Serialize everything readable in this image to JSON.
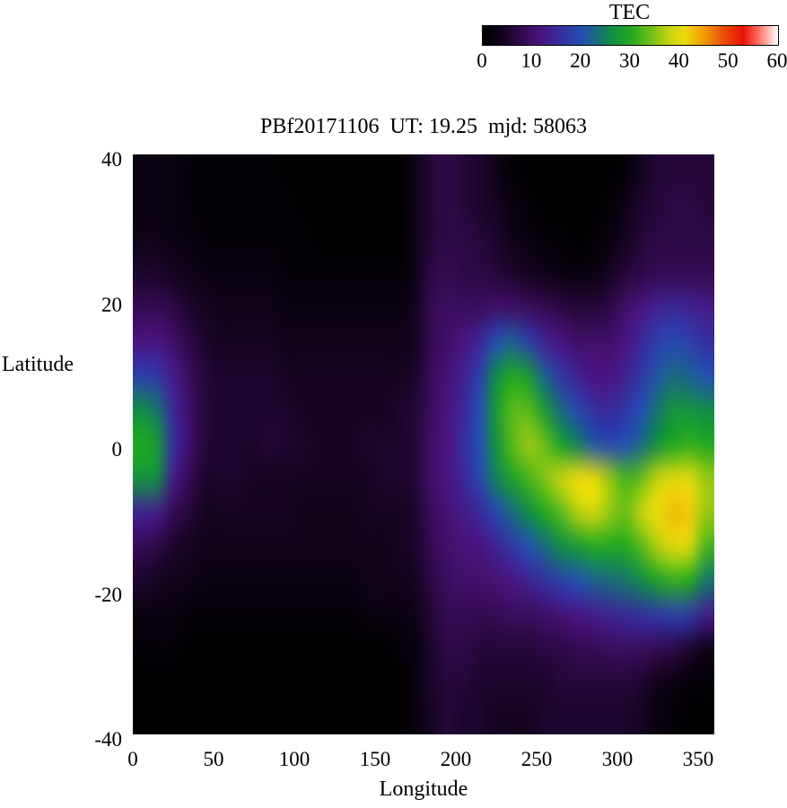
{
  "chart_data": {
    "type": "heatmap",
    "title": "PBf20171106  UT: 19.25  mjd: 58063",
    "xlabel": "Longitude",
    "ylabel": "Latitude",
    "colorbar_label": "TEC",
    "xlim": [
      0,
      360
    ],
    "ylim": [
      -40,
      40
    ],
    "x_ticks": [
      0,
      50,
      100,
      150,
      200,
      250,
      300,
      350
    ],
    "y_ticks": [
      40,
      20,
      0,
      -20,
      -40
    ],
    "colorbar_range": [
      0,
      60
    ],
    "colorbar_ticks": [
      0,
      10,
      20,
      30,
      40,
      50,
      60
    ],
    "lon_grid": [
      0,
      10,
      20,
      30,
      40,
      50,
      60,
      70,
      80,
      90,
      100,
      110,
      120,
      130,
      140,
      150,
      160,
      170,
      180,
      190,
      200,
      210,
      220,
      230,
      240,
      250,
      260,
      270,
      280,
      290,
      300,
      310,
      320,
      330,
      340,
      350
    ],
    "lat_grid": [
      40,
      35,
      30,
      25,
      20,
      15,
      10,
      5,
      0,
      -5,
      -10,
      -15,
      -20,
      -25,
      -30,
      -35,
      -40
    ],
    "tec_values": [
      [
        2,
        2,
        2,
        1,
        1,
        1,
        1,
        1,
        1,
        0,
        0,
        0,
        0,
        0,
        0,
        0,
        0,
        3,
        6,
        7,
        6,
        5,
        3,
        1,
        0,
        0,
        0,
        0,
        0,
        0,
        1,
        4,
        6,
        6,
        6,
        6
      ],
      [
        2,
        2,
        2,
        1,
        1,
        1,
        1,
        1,
        1,
        1,
        0,
        0,
        0,
        0,
        0,
        0,
        0,
        3,
        6,
        7,
        6,
        5,
        4,
        2,
        1,
        0,
        0,
        0,
        0,
        1,
        3,
        5,
        6,
        7,
        7,
        6
      ],
      [
        3,
        3,
        2,
        2,
        1,
        1,
        1,
        1,
        1,
        1,
        1,
        0,
        0,
        0,
        0,
        0,
        0,
        3,
        6,
        7,
        7,
        6,
        5,
        3,
        2,
        1,
        1,
        0,
        1,
        2,
        4,
        6,
        7,
        7,
        7,
        7
      ],
      [
        5,
        5,
        4,
        3,
        2,
        2,
        2,
        2,
        2,
        1,
        1,
        1,
        1,
        1,
        1,
        1,
        1,
        3,
        7,
        8,
        7,
        7,
        6,
        5,
        4,
        3,
        2,
        2,
        2,
        4,
        6,
        7,
        8,
        8,
        8,
        8
      ],
      [
        8,
        8,
        7,
        5,
        4,
        3,
        3,
        3,
        3,
        2,
        2,
        2,
        2,
        2,
        2,
        2,
        2,
        4,
        8,
        9,
        9,
        9,
        10,
        10,
        9,
        8,
        7,
        6,
        6,
        7,
        10,
        12,
        14,
        15,
        14,
        13
      ],
      [
        12,
        12,
        10,
        7,
        5,
        4,
        4,
        4,
        4,
        3,
        3,
        3,
        3,
        3,
        3,
        3,
        3,
        4,
        8,
        10,
        12,
        15,
        20,
        22,
        18,
        14,
        12,
        10,
        10,
        10,
        12,
        15,
        18,
        19,
        18,
        16
      ],
      [
        18,
        17,
        13,
        9,
        6,
        5,
        5,
        5,
        5,
        4,
        4,
        4,
        4,
        4,
        4,
        4,
        4,
        5,
        9,
        11,
        14,
        18,
        26,
        30,
        28,
        22,
        17,
        14,
        12,
        12,
        14,
        17,
        21,
        23,
        22,
        20
      ],
      [
        26,
        24,
        15,
        10,
        6,
        5,
        5,
        5,
        5,
        5,
        4,
        4,
        4,
        4,
        4,
        4,
        5,
        6,
        9,
        12,
        15,
        20,
        28,
        33,
        33,
        28,
        23,
        19,
        16,
        15,
        17,
        20,
        24,
        27,
        27,
        26
      ],
      [
        30,
        28,
        16,
        10,
        6,
        5,
        5,
        5,
        6,
        5,
        5,
        4,
        4,
        4,
        5,
        5,
        5,
        6,
        10,
        12,
        16,
        20,
        27,
        33,
        36,
        34,
        29,
        25,
        21,
        19,
        20,
        23,
        27,
        30,
        31,
        30
      ],
      [
        27,
        26,
        13,
        8,
        5,
        5,
        5,
        4,
        4,
        4,
        4,
        4,
        4,
        4,
        4,
        5,
        5,
        6,
        10,
        12,
        15,
        19,
        25,
        29,
        32,
        35,
        38,
        41,
        41,
        36,
        32,
        34,
        38,
        40,
        40,
        36
      ],
      [
        14,
        13,
        8,
        6,
        4,
        4,
        4,
        4,
        4,
        4,
        3,
        3,
        3,
        3,
        4,
        4,
        4,
        5,
        9,
        11,
        13,
        15,
        19,
        23,
        26,
        30,
        33,
        37,
        39,
        36,
        34,
        38,
        41,
        43,
        42,
        36
      ],
      [
        8,
        7,
        5,
        4,
        3,
        3,
        3,
        3,
        3,
        3,
        3,
        3,
        3,
        3,
        3,
        3,
        4,
        5,
        8,
        10,
        11,
        12,
        14,
        17,
        20,
        23,
        26,
        28,
        30,
        30,
        30,
        33,
        37,
        40,
        39,
        32
      ],
      [
        5,
        4,
        3,
        3,
        2,
        2,
        2,
        2,
        2,
        2,
        2,
        2,
        2,
        2,
        3,
        3,
        3,
        4,
        7,
        9,
        10,
        10,
        11,
        12,
        14,
        16,
        18,
        20,
        22,
        23,
        24,
        26,
        29,
        31,
        30,
        24
      ],
      [
        2,
        2,
        2,
        1,
        1,
        1,
        1,
        1,
        1,
        1,
        1,
        1,
        1,
        1,
        2,
        2,
        2,
        3,
        6,
        8,
        8,
        8,
        8,
        9,
        9,
        10,
        11,
        12,
        13,
        14,
        15,
        16,
        17,
        18,
        17,
        13
      ],
      [
        1,
        1,
        1,
        0,
        0,
        0,
        0,
        0,
        0,
        0,
        0,
        0,
        0,
        0,
        0,
        0,
        1,
        2,
        5,
        7,
        7,
        6,
        6,
        6,
        6,
        7,
        7,
        8,
        8,
        9,
        9,
        9,
        8,
        7,
        5,
        3
      ],
      [
        0,
        0,
        0,
        0,
        0,
        0,
        0,
        0,
        0,
        0,
        0,
        0,
        0,
        0,
        0,
        0,
        0,
        2,
        5,
        6,
        6,
        5,
        5,
        5,
        5,
        5,
        6,
        6,
        6,
        6,
        6,
        5,
        3,
        2,
        1,
        1
      ],
      [
        0,
        0,
        0,
        0,
        0,
        0,
        0,
        0,
        0,
        0,
        0,
        0,
        0,
        0,
        0,
        0,
        0,
        2,
        4,
        6,
        5,
        5,
        4,
        4,
        4,
        5,
        5,
        5,
        5,
        5,
        5,
        4,
        2,
        1,
        0,
        0
      ]
    ],
    "color_stops": [
      {
        "v": 0,
        "c": "#000000"
      },
      {
        "v": 4,
        "c": "#140420"
      },
      {
        "v": 8,
        "c": "#350b52"
      },
      {
        "v": 12,
        "c": "#4a1582"
      },
      {
        "v": 16,
        "c": "#35309f"
      },
      {
        "v": 20,
        "c": "#2450b4"
      },
      {
        "v": 23,
        "c": "#1a6a80"
      },
      {
        "v": 26,
        "c": "#128c48"
      },
      {
        "v": 30,
        "c": "#22a822"
      },
      {
        "v": 34,
        "c": "#6cbe18"
      },
      {
        "v": 38,
        "c": "#c6d410"
      },
      {
        "v": 41,
        "c": "#ecdc0a"
      },
      {
        "v": 45,
        "c": "#f29c06"
      },
      {
        "v": 49,
        "c": "#ea4e06"
      },
      {
        "v": 53,
        "c": "#e81206"
      },
      {
        "v": 56,
        "c": "#ff6a5e"
      },
      {
        "v": 58,
        "c": "#ffb4ac"
      },
      {
        "v": 60,
        "c": "#ffffff"
      }
    ],
    "legend_position": "top-right",
    "grid": false
  }
}
